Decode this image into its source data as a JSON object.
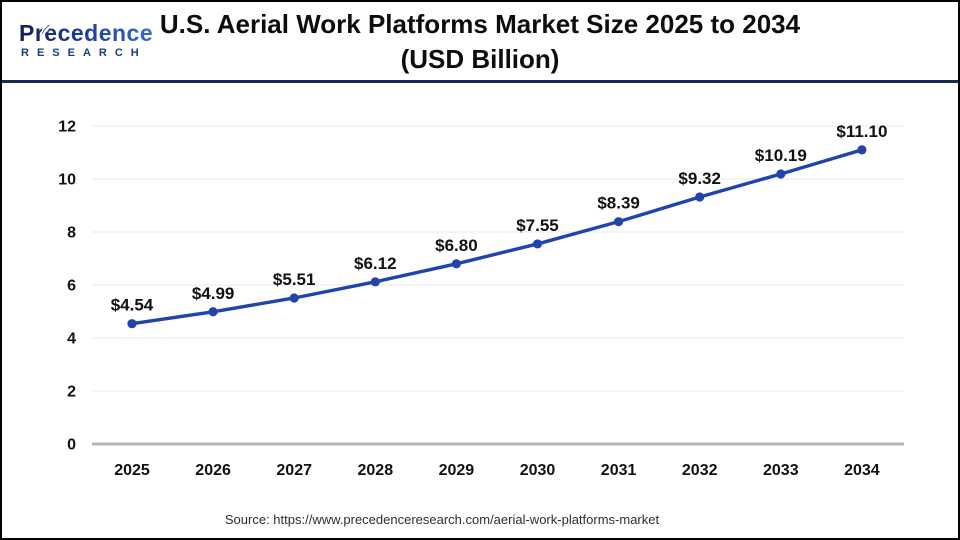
{
  "brand": {
    "name": "Precedence",
    "subtitle": "RESEARCH"
  },
  "header": {
    "title_line1": "U.S. Aerial Work Platforms Market Size 2025 to 2034",
    "title_line2": "(USD Billion)"
  },
  "footer": {
    "source": "Source: https://www.precedenceresearch.com/aerial-work-platforms-market"
  },
  "colors": {
    "line": "#2044ab",
    "point": "#2044ab",
    "grid": "#eaeaea",
    "axis_baseline": "#b5b5b5",
    "text": "#111111",
    "header_rule": "#1a2653",
    "brand_navy": "#1d3a86",
    "brand_blue": "#3f73d9"
  },
  "chart_data": {
    "type": "line",
    "title": "U.S. Aerial Work Platforms Market Size 2025 to 2034 (USD Billion)",
    "categories": [
      "2025",
      "2026",
      "2027",
      "2028",
      "2029",
      "2030",
      "2031",
      "2032",
      "2033",
      "2034"
    ],
    "series": [
      {
        "name": "U.S. aerial work platforms market size (USD Billion)",
        "values": [
          4.54,
          4.99,
          5.51,
          6.12,
          6.8,
          7.55,
          8.39,
          9.32,
          10.19,
          11.1
        ],
        "labels": [
          "$4.54",
          "$4.99",
          "$5.51",
          "$6.12",
          "$6.80",
          "$7.55",
          "$8.39",
          "$9.32",
          "$10.19",
          "$11.10"
        ],
        "color": "#2044ab"
      }
    ],
    "xlabel": "",
    "ylabel": "",
    "yticks": [
      0,
      2,
      4,
      6,
      8,
      10,
      12
    ],
    "ylim": [
      0,
      12
    ],
    "grid": "horizontal",
    "legend": "none"
  }
}
